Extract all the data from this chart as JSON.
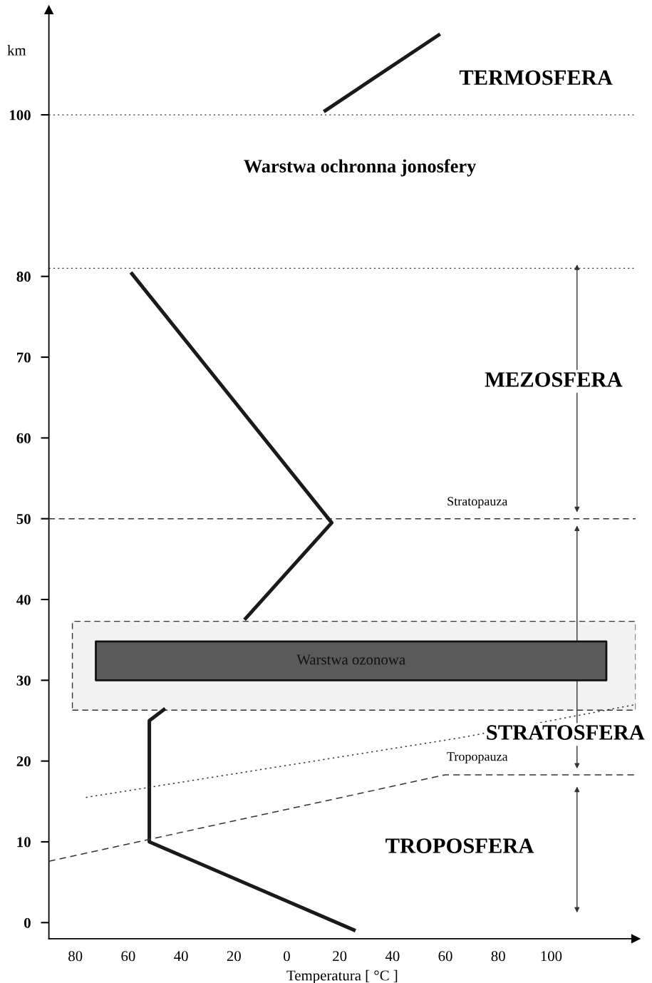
{
  "chart_data": {
    "type": "line",
    "xlabel": "Temperatura [ °C ]",
    "ylabel": "km",
    "xlim": [
      -90,
      132
    ],
    "ylim": [
      -2,
      113
    ],
    "xticks": [
      {
        "value": -80,
        "label": "80"
      },
      {
        "value": -60,
        "label": "60"
      },
      {
        "value": -40,
        "label": "40"
      },
      {
        "value": -20,
        "label": "20"
      },
      0,
      20,
      40,
      60,
      80,
      100
    ],
    "yticks": [
      0,
      10,
      20,
      30,
      40,
      50,
      60,
      70,
      80,
      100
    ],
    "grid": false,
    "legend": false,
    "marker": "none",
    "series": [
      {
        "color": "#1a1a1a",
        "line_style": "solid",
        "x": [
          26,
          -52,
          -52,
          -46,
          null,
          -16,
          17,
          -59
        ],
        "values": [
          -1,
          10,
          25,
          26.5,
          null,
          37.5,
          49.5,
          80.5
        ]
      },
      {
        "color": "#1a1a1a",
        "line_style": "solid",
        "x": [
          14,
          58
        ],
        "values": [
          100.4,
          110
        ]
      },
      {
        "color": "#333333",
        "line_style": "dashed",
        "x": [
          -90,
          60,
          132
        ],
        "values": [
          7.6,
          18.3,
          18.3
        ]
      },
      {
        "color": "#333333",
        "line_style": "dotted",
        "x": [
          -76,
          66,
          132
        ],
        "values": [
          15.5,
          22.9,
          27
        ]
      }
    ],
    "ref_lines": [
      {
        "axis": "y",
        "value": 100,
        "line_style": "dotted"
      },
      {
        "axis": "y",
        "value": 81,
        "line_style": "dotted"
      },
      {
        "axis": "y",
        "value": 50,
        "line_style": "dashed",
        "label": "Stratopauza"
      }
    ],
    "bands": [
      {
        "axis": "y",
        "from": 26.3,
        "to": 37.3,
        "color": "#f2f2f2"
      },
      {
        "axis": "y",
        "from": 30,
        "to": 34.8,
        "color": "#5a5a5a",
        "label": "Warstwa ozonowa"
      }
    ],
    "annotations": [
      "TERMOSFERA",
      "Warstwa ochronna jonosfery",
      "MEZOSFERA",
      "STRATOSFERA",
      "Tropopauza",
      "TROPOSFERA"
    ]
  }
}
